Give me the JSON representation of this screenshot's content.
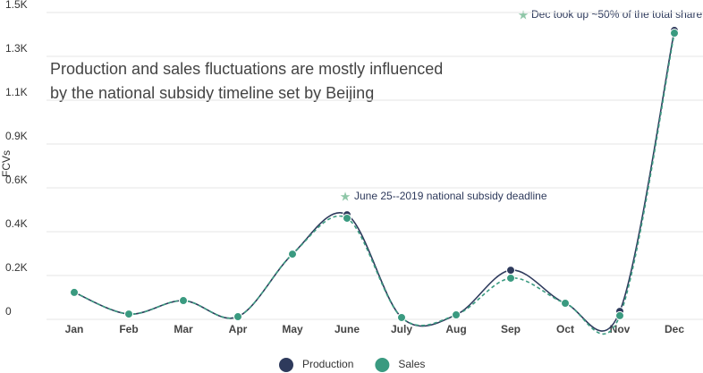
{
  "chart_data": {
    "type": "line",
    "title_lines": [
      "Production and sales fluctuations are mostly influenced",
      "by the national subsidy  timeline set by Beijing"
    ],
    "y_label": "FCVs",
    "annotations": [
      "Dec took up ~50% of the total share",
      "June 25--2019 national subsidy deadline"
    ],
    "categories": [
      "Jan",
      "Feb",
      "Mar",
      "Apr",
      "May",
      "June",
      "July",
      "Aug",
      "Sep",
      "Oct",
      "Nov",
      "Dec"
    ],
    "series": [
      {
        "name": "Production",
        "color": "#2e3a5c",
        "dash": false,
        "values": [
          132,
          26,
          92,
          13,
          320,
          513,
          9,
          22,
          241,
          79,
          39,
          1417
        ]
      },
      {
        "name": "Sales",
        "color": "#3a9a80",
        "dash": true,
        "values": [
          132,
          26,
          92,
          13,
          320,
          496,
          9,
          22,
          202,
          79,
          18,
          1404
        ]
      }
    ],
    "ylim": [
      0,
      1505
    ],
    "yticks": [
      0,
      {
        "value": 215,
        "label": "0.2K"
      },
      {
        "value": 430,
        "label": "0.4K"
      },
      {
        "value": 645,
        "label": "0.6K"
      },
      {
        "value": 860,
        "label": "0.9K"
      },
      {
        "value": 1075,
        "label": "1.1K"
      },
      {
        "value": 1290,
        "label": "1.3K"
      },
      {
        "value": 1505,
        "label": "1.5K"
      }
    ],
    "grid": true
  }
}
